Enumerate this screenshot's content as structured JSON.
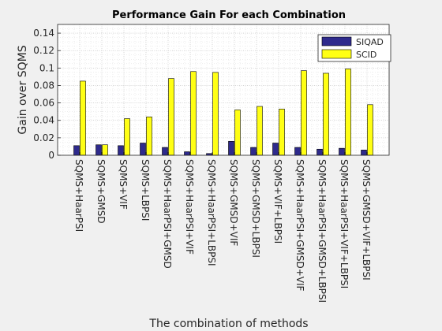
{
  "chart_data": {
    "type": "bar",
    "title": "Performance Gain For each Combination",
    "xlabel": "The combination of methods",
    "ylabel": "Gain over SQMS",
    "ylim": [
      0,
      0.15
    ],
    "yticks": [
      "0",
      "0.02",
      "0.04",
      "0.06",
      "0.08",
      "0.1",
      "0.12",
      "0.14"
    ],
    "grid": true,
    "legend_position": "top-right",
    "categories": [
      "SQMS+HaarPSI",
      "SQMS+GMSD",
      "SQMS+VIF",
      "SQMS+LBPSI",
      "SQMS+HaarPSI+GMSD",
      "SQMS+HaarPSI+VIF",
      "SQMS+HaarPSI+LBPSI",
      "SQMS+GMSD+VIF",
      "SQMS+GMSD+LBPSI",
      "SQMS+VIF+LBPSI",
      "SQMS+HaarPSI+GMSD+VIF",
      "SQMS+HaarPSI+GMSD+LBPSI",
      "SQMS+HaarPSI+VIF+LBPSI",
      "SQMS+GMSD+VIF+LBPSI"
    ],
    "series": [
      {
        "name": "SIQAD",
        "color": "#2e2a8c",
        "values": [
          0.011,
          0.012,
          0.011,
          0.014,
          0.009,
          0.004,
          0.002,
          0.016,
          0.009,
          0.014,
          0.009,
          0.007,
          0.008,
          0.006
        ]
      },
      {
        "name": "SCID",
        "color": "#ffff14",
        "values": [
          0.085,
          0.012,
          0.042,
          0.044,
          0.088,
          0.096,
          0.095,
          0.052,
          0.056,
          0.053,
          0.097,
          0.094,
          0.099,
          0.058
        ]
      }
    ]
  }
}
